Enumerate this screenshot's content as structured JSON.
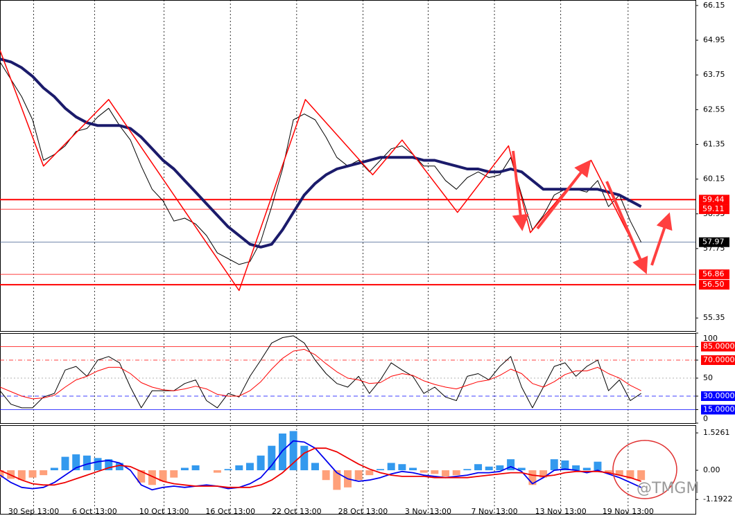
{
  "watermark": "@TMGM",
  "chart_data": [
    {
      "type": "line",
      "ylim": [
        54.9,
        66.34
      ],
      "yticks": [
        66.15,
        64.95,
        63.75,
        62.55,
        61.35,
        60.15,
        58.95,
        57.75,
        55.35
      ],
      "levels": [
        59.44,
        59.11,
        57.97,
        56.86,
        {
          "value": 56.5,
          "label": "56.50"
        }
      ],
      "level_colors": [
        "#ff0000",
        "#ff0000",
        "#3a5a8c",
        "#ff0000",
        "#ff0000"
      ],
      "xlim": [
        0,
        64
      ],
      "series": [
        {
          "color": "#000000",
          "values": [
            64.2,
            63.6,
            63.0,
            62.2,
            60.8,
            61.0,
            61.3,
            61.8,
            61.9,
            62.3,
            62.6,
            62.0,
            61.5,
            60.6,
            59.8,
            59.4,
            58.7,
            58.8,
            58.6,
            58.2,
            57.6,
            57.4,
            57.2,
            57.3,
            58.0,
            59.2,
            60.5,
            62.2,
            62.4,
            62.2,
            61.6,
            60.9,
            60.6,
            60.8,
            60.4,
            60.8,
            61.2,
            61.3,
            61.0,
            60.6,
            60.6,
            60.1,
            59.8,
            60.2,
            60.4,
            60.2,
            60.3,
            60.9,
            59.6,
            58.4,
            58.9,
            59.6,
            59.8,
            59.8,
            59.7,
            60.1,
            59.2,
            59.6,
            58.7,
            57.97
          ]
        },
        {
          "color": "#1b1b6b",
          "values": [
            64.3,
            64.2,
            64.0,
            63.7,
            63.3,
            63.0,
            62.6,
            62.3,
            62.1,
            62.0,
            62.0,
            62.0,
            61.9,
            61.6,
            61.2,
            60.8,
            60.5,
            60.1,
            59.7,
            59.3,
            58.9,
            58.5,
            58.2,
            57.9,
            57.8,
            57.9,
            58.4,
            59.0,
            59.6,
            60.0,
            60.3,
            60.5,
            60.6,
            60.7,
            60.8,
            60.9,
            60.9,
            60.9,
            60.9,
            60.8,
            60.8,
            60.7,
            60.6,
            60.5,
            60.5,
            60.4,
            60.4,
            60.5,
            60.4,
            60.1,
            59.8,
            59.8,
            59.8,
            59.8,
            59.8,
            59.8,
            59.7,
            59.6,
            59.4,
            59.2
          ]
        },
        {
          "color": "#ff0000",
          "x": [
            0,
            4.0,
            10.0,
            22.0,
            28.1,
            34.3,
            37.0,
            42.1,
            46.8,
            48.8,
            54.4,
            59.5
          ],
          "values": [
            64.6,
            60.6,
            62.9,
            56.3,
            62.9,
            60.3,
            61.5,
            59.0,
            61.3,
            58.3,
            60.8,
            57.0
          ]
        }
      ]
    },
    {
      "type": "line",
      "ylim": [
        0,
        100
      ],
      "yticks": [
        100,
        {
          "value": 85,
          "label": "85.0000"
        },
        {
          "value": 70,
          "label": "70.0000"
        },
        50,
        {
          "value": 30,
          "label": "30.0000"
        },
        {
          "value": 15,
          "label": "15.0000"
        },
        0
      ],
      "xlim": [
        0,
        64
      ],
      "series": [
        {
          "color": "#000000",
          "values": [
            36,
            21,
            17,
            17,
            29,
            33,
            59,
            63,
            52,
            70,
            74,
            67,
            40,
            17,
            36,
            36,
            36,
            44,
            48,
            25,
            17,
            33,
            29,
            52,
            70,
            89,
            95,
            97,
            89,
            70,
            55,
            44,
            40,
            52,
            33,
            48,
            67,
            59,
            52,
            33,
            40,
            29,
            25,
            52,
            55,
            48,
            63,
            74,
            40,
            17,
            40,
            63,
            67,
            52,
            63,
            70,
            36,
            48,
            25,
            33
          ]
        },
        {
          "color": "#ff0000",
          "values": [
            40,
            35,
            30,
            27,
            28,
            31,
            40,
            48,
            52,
            58,
            62,
            62,
            55,
            45,
            40,
            37,
            36,
            38,
            41,
            38,
            32,
            30,
            30,
            36,
            46,
            60,
            72,
            80,
            82,
            76,
            66,
            57,
            50,
            48,
            44,
            45,
            52,
            55,
            53,
            47,
            43,
            40,
            38,
            42,
            46,
            48,
            53,
            60,
            55,
            44,
            40,
            46,
            54,
            58,
            58,
            62,
            55,
            50,
            42,
            36
          ]
        }
      ]
    },
    {
      "type": "combo",
      "ylim": [
        -1.78,
        1.84
      ],
      "yticks": [
        1.5261,
        {
          "value": 0,
          "label": "0.00"
        },
        -1.1922
      ],
      "xlim": [
        0,
        64
      ],
      "xticks": [
        {
          "value": 3.1,
          "label": "30 Sep 13:00"
        },
        {
          "value": 8.7,
          "label": "6 Oct 13:00"
        },
        {
          "value": 15.1,
          "label": "10 Oct 13:00"
        },
        {
          "value": 21.2,
          "label": "16 Oct 13:00"
        },
        {
          "value": 27.3,
          "label": "22 Oct 13:00"
        },
        {
          "value": 33.4,
          "label": "28 Oct 13:00"
        },
        {
          "value": 39.4,
          "label": "3 Nov 13:00"
        },
        {
          "value": 45.5,
          "label": "7 Nov 13:00"
        },
        {
          "value": 51.6,
          "label": "13 Nov 13:00"
        },
        {
          "value": 57.8,
          "label": "19 Nov 13:00"
        }
      ],
      "histogram": {
        "color": "#3399ee",
        "negative_color": "#ffa07a",
        "values": [
          -0.3,
          -0.35,
          -0.4,
          -0.3,
          -0.2,
          0.1,
          0.55,
          0.65,
          0.6,
          0.5,
          0.45,
          0.3,
          0.0,
          -0.5,
          -0.6,
          -0.45,
          -0.3,
          0.1,
          0.2,
          0.0,
          -0.1,
          0.05,
          0.2,
          0.3,
          0.6,
          1.0,
          1.5,
          1.6,
          1.0,
          0.3,
          -0.4,
          -0.8,
          -0.7,
          -0.4,
          -0.2,
          0.05,
          0.3,
          0.25,
          0.1,
          -0.1,
          -0.15,
          -0.25,
          -0.2,
          0.05,
          0.25,
          0.15,
          0.2,
          0.45,
          0.1,
          -0.6,
          -0.3,
          0.45,
          0.4,
          0.2,
          0.1,
          0.35,
          -0.1,
          -0.2,
          -0.35,
          -0.4
        ]
      },
      "series": [
        {
          "color": "#0000ee",
          "values": [
            -0.2,
            -0.5,
            -0.7,
            -0.75,
            -0.7,
            -0.5,
            -0.2,
            0.1,
            0.25,
            0.35,
            0.4,
            0.3,
            0.0,
            -0.6,
            -0.8,
            -0.7,
            -0.65,
            -0.7,
            -0.65,
            -0.6,
            -0.65,
            -0.75,
            -0.7,
            -0.55,
            -0.3,
            0.2,
            0.8,
            1.2,
            1.15,
            0.9,
            0.4,
            -0.1,
            -0.35,
            -0.45,
            -0.4,
            -0.3,
            -0.15,
            -0.05,
            -0.1,
            -0.2,
            -0.25,
            -0.3,
            -0.25,
            -0.2,
            -0.1,
            -0.1,
            -0.05,
            0.15,
            -0.05,
            -0.55,
            -0.3,
            0.0,
            0.05,
            0.0,
            -0.1,
            0.0,
            -0.15,
            -0.3,
            -0.5,
            -0.7
          ]
        },
        {
          "color": "#ee0000",
          "values": [
            0.0,
            -0.2,
            -0.4,
            -0.55,
            -0.6,
            -0.6,
            -0.5,
            -0.35,
            -0.2,
            -0.05,
            0.1,
            0.2,
            0.15,
            -0.05,
            -0.25,
            -0.45,
            -0.55,
            -0.6,
            -0.65,
            -0.65,
            -0.65,
            -0.7,
            -0.7,
            -0.7,
            -0.6,
            -0.4,
            -0.1,
            0.3,
            0.7,
            0.9,
            0.9,
            0.75,
            0.5,
            0.25,
            0.05,
            -0.1,
            -0.2,
            -0.25,
            -0.25,
            -0.25,
            -0.3,
            -0.3,
            -0.3,
            -0.3,
            -0.25,
            -0.2,
            -0.15,
            -0.1,
            -0.1,
            -0.2,
            -0.25,
            -0.2,
            -0.1,
            -0.05,
            -0.05,
            -0.05,
            -0.1,
            -0.2,
            -0.3,
            -0.45
          ]
        }
      ]
    }
  ]
}
